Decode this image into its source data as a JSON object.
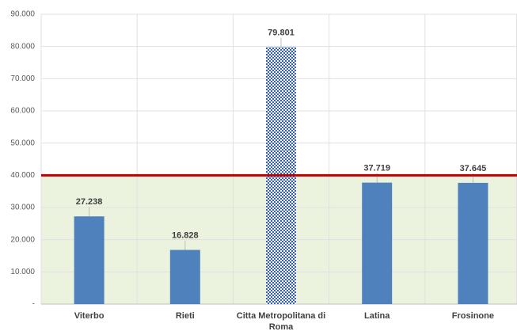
{
  "chart_data": {
    "type": "bar",
    "categories": [
      "Viterbo",
      "Rieti",
      "Citta Metropolitana di Roma",
      "Latina",
      "Frosinone"
    ],
    "values": [
      27238,
      16828,
      79801,
      37719,
      37645
    ],
    "value_labels": [
      "27.238",
      "16.828",
      "79.801",
      "37.719",
      "37.645"
    ],
    "color": "#4f81bd",
    "patterned_index": 2,
    "pattern_color": "#2f5fbf",
    "ylim": [
      0,
      90000
    ],
    "yticks": [
      {
        "value": 0,
        "label": "-"
      },
      {
        "value": 10000,
        "label": "10.000"
      },
      {
        "value": 20000,
        "label": "20.000"
      },
      {
        "value": 30000,
        "label": "30.000"
      },
      {
        "value": 40000,
        "label": "40.000"
      },
      {
        "value": 50000,
        "label": "50.000"
      },
      {
        "value": 60000,
        "label": "60.000"
      },
      {
        "value": 70000,
        "label": "70.000"
      },
      {
        "value": 80000,
        "label": "80.000"
      },
      {
        "value": 90000,
        "label": "90.000"
      }
    ],
    "grid": true,
    "reference_line": {
      "value": 40000,
      "color": "#c00000",
      "fill": "#ebf3df"
    }
  }
}
